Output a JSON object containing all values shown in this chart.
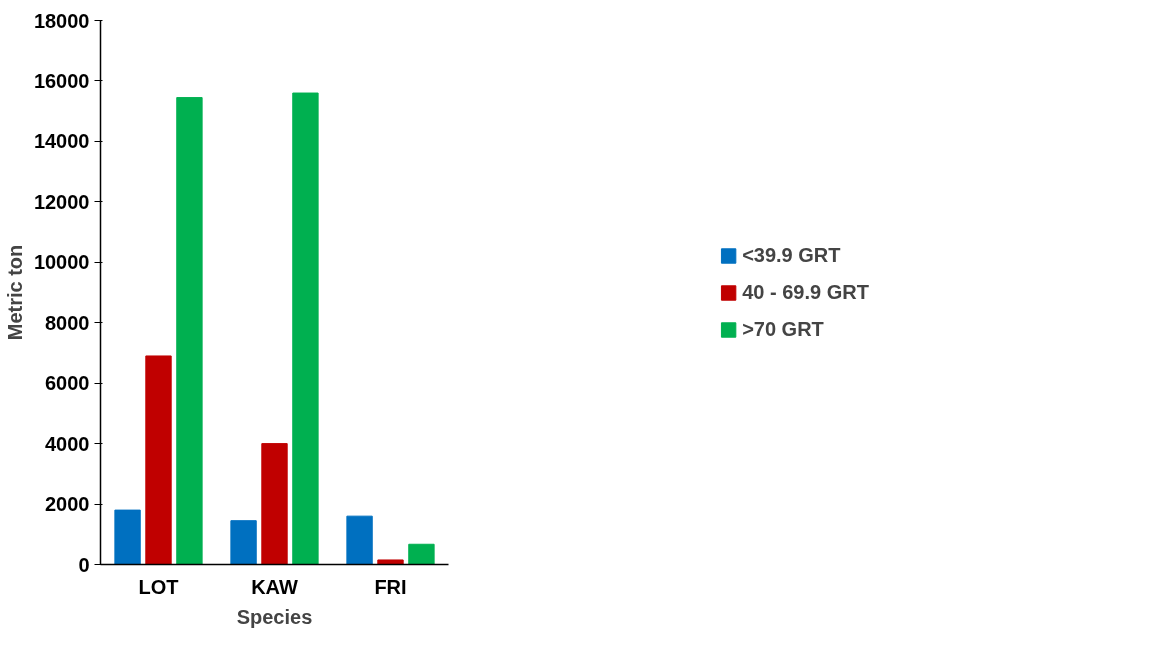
{
  "chart_data": {
    "type": "bar",
    "xlabel": "Species",
    "ylabel": "Metric ton",
    "categories": [
      "LOT",
      "KAW",
      "FRI"
    ],
    "series": [
      {
        "name": "<39.9 GRT",
        "color": "#0070c0",
        "values": [
          1800,
          1450,
          1600
        ]
      },
      {
        "name": "40 - 69.9 GRT",
        "color": "#c00000",
        "values": [
          6900,
          4000,
          150
        ]
      },
      {
        "name": ">70 GRT",
        "color": "#00b050",
        "values": [
          15450,
          15600,
          670
        ]
      }
    ],
    "ylim": [
      0,
      18000
    ],
    "yticks": [
      0,
      2000,
      4000,
      6000,
      8000,
      10000,
      12000,
      14000,
      16000,
      18000
    ],
    "grid": false,
    "legend": "right"
  }
}
